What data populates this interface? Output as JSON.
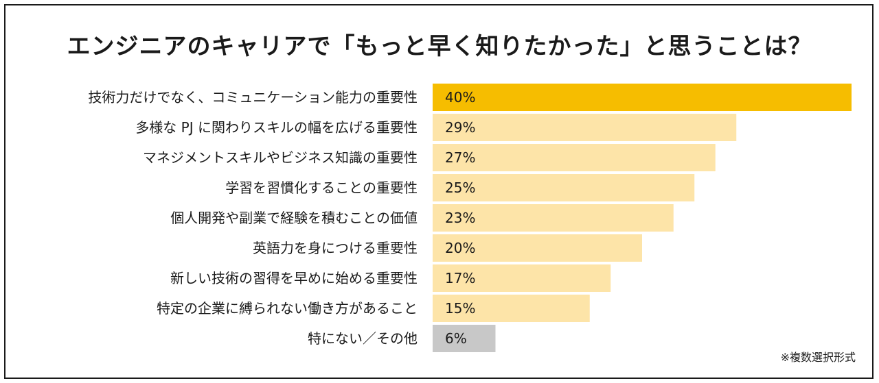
{
  "title": "エンジニアのキャリアで「もっと早く知りたかった」と思うことは？",
  "note": "※複数選択形式",
  "colors": {
    "highlight": "#f6bd00",
    "normal": "#fde4a8",
    "other": "#c8c8c8",
    "text": "#1a1a1a",
    "border": "#1a1a1a"
  },
  "chart_data": {
    "type": "bar",
    "orientation": "horizontal",
    "title": "エンジニアのキャリアで「もっと早く知りたかった」と思うことは？",
    "xlabel": "",
    "ylabel": "",
    "unit": "%",
    "xlim": [
      0,
      40
    ],
    "grid": false,
    "categories": [
      "技術力だけでなく、コミュニケーション能力の重要性",
      "多様な PJ に関わりスキルの幅を広げる重要性",
      "マネジメントスキルやビジネス知識の重要性",
      "学習を習慣化することの重要性",
      "個人開発や副業で経験を積むことの価値",
      "英語力を身につける重要性",
      "新しい技術の習得を早めに始める重要性",
      "特定の企業に縛られない働き方があること",
      "特にない／その他"
    ],
    "values": [
      40,
      29,
      27,
      25,
      23,
      20,
      17,
      15,
      6
    ],
    "value_labels": [
      "40%",
      "29%",
      "27%",
      "25%",
      "23%",
      "20%",
      "17%",
      "15%",
      "6%"
    ],
    "bar_styles": [
      "highlight",
      "normal",
      "normal",
      "normal",
      "normal",
      "normal",
      "normal",
      "normal",
      "other"
    ]
  }
}
